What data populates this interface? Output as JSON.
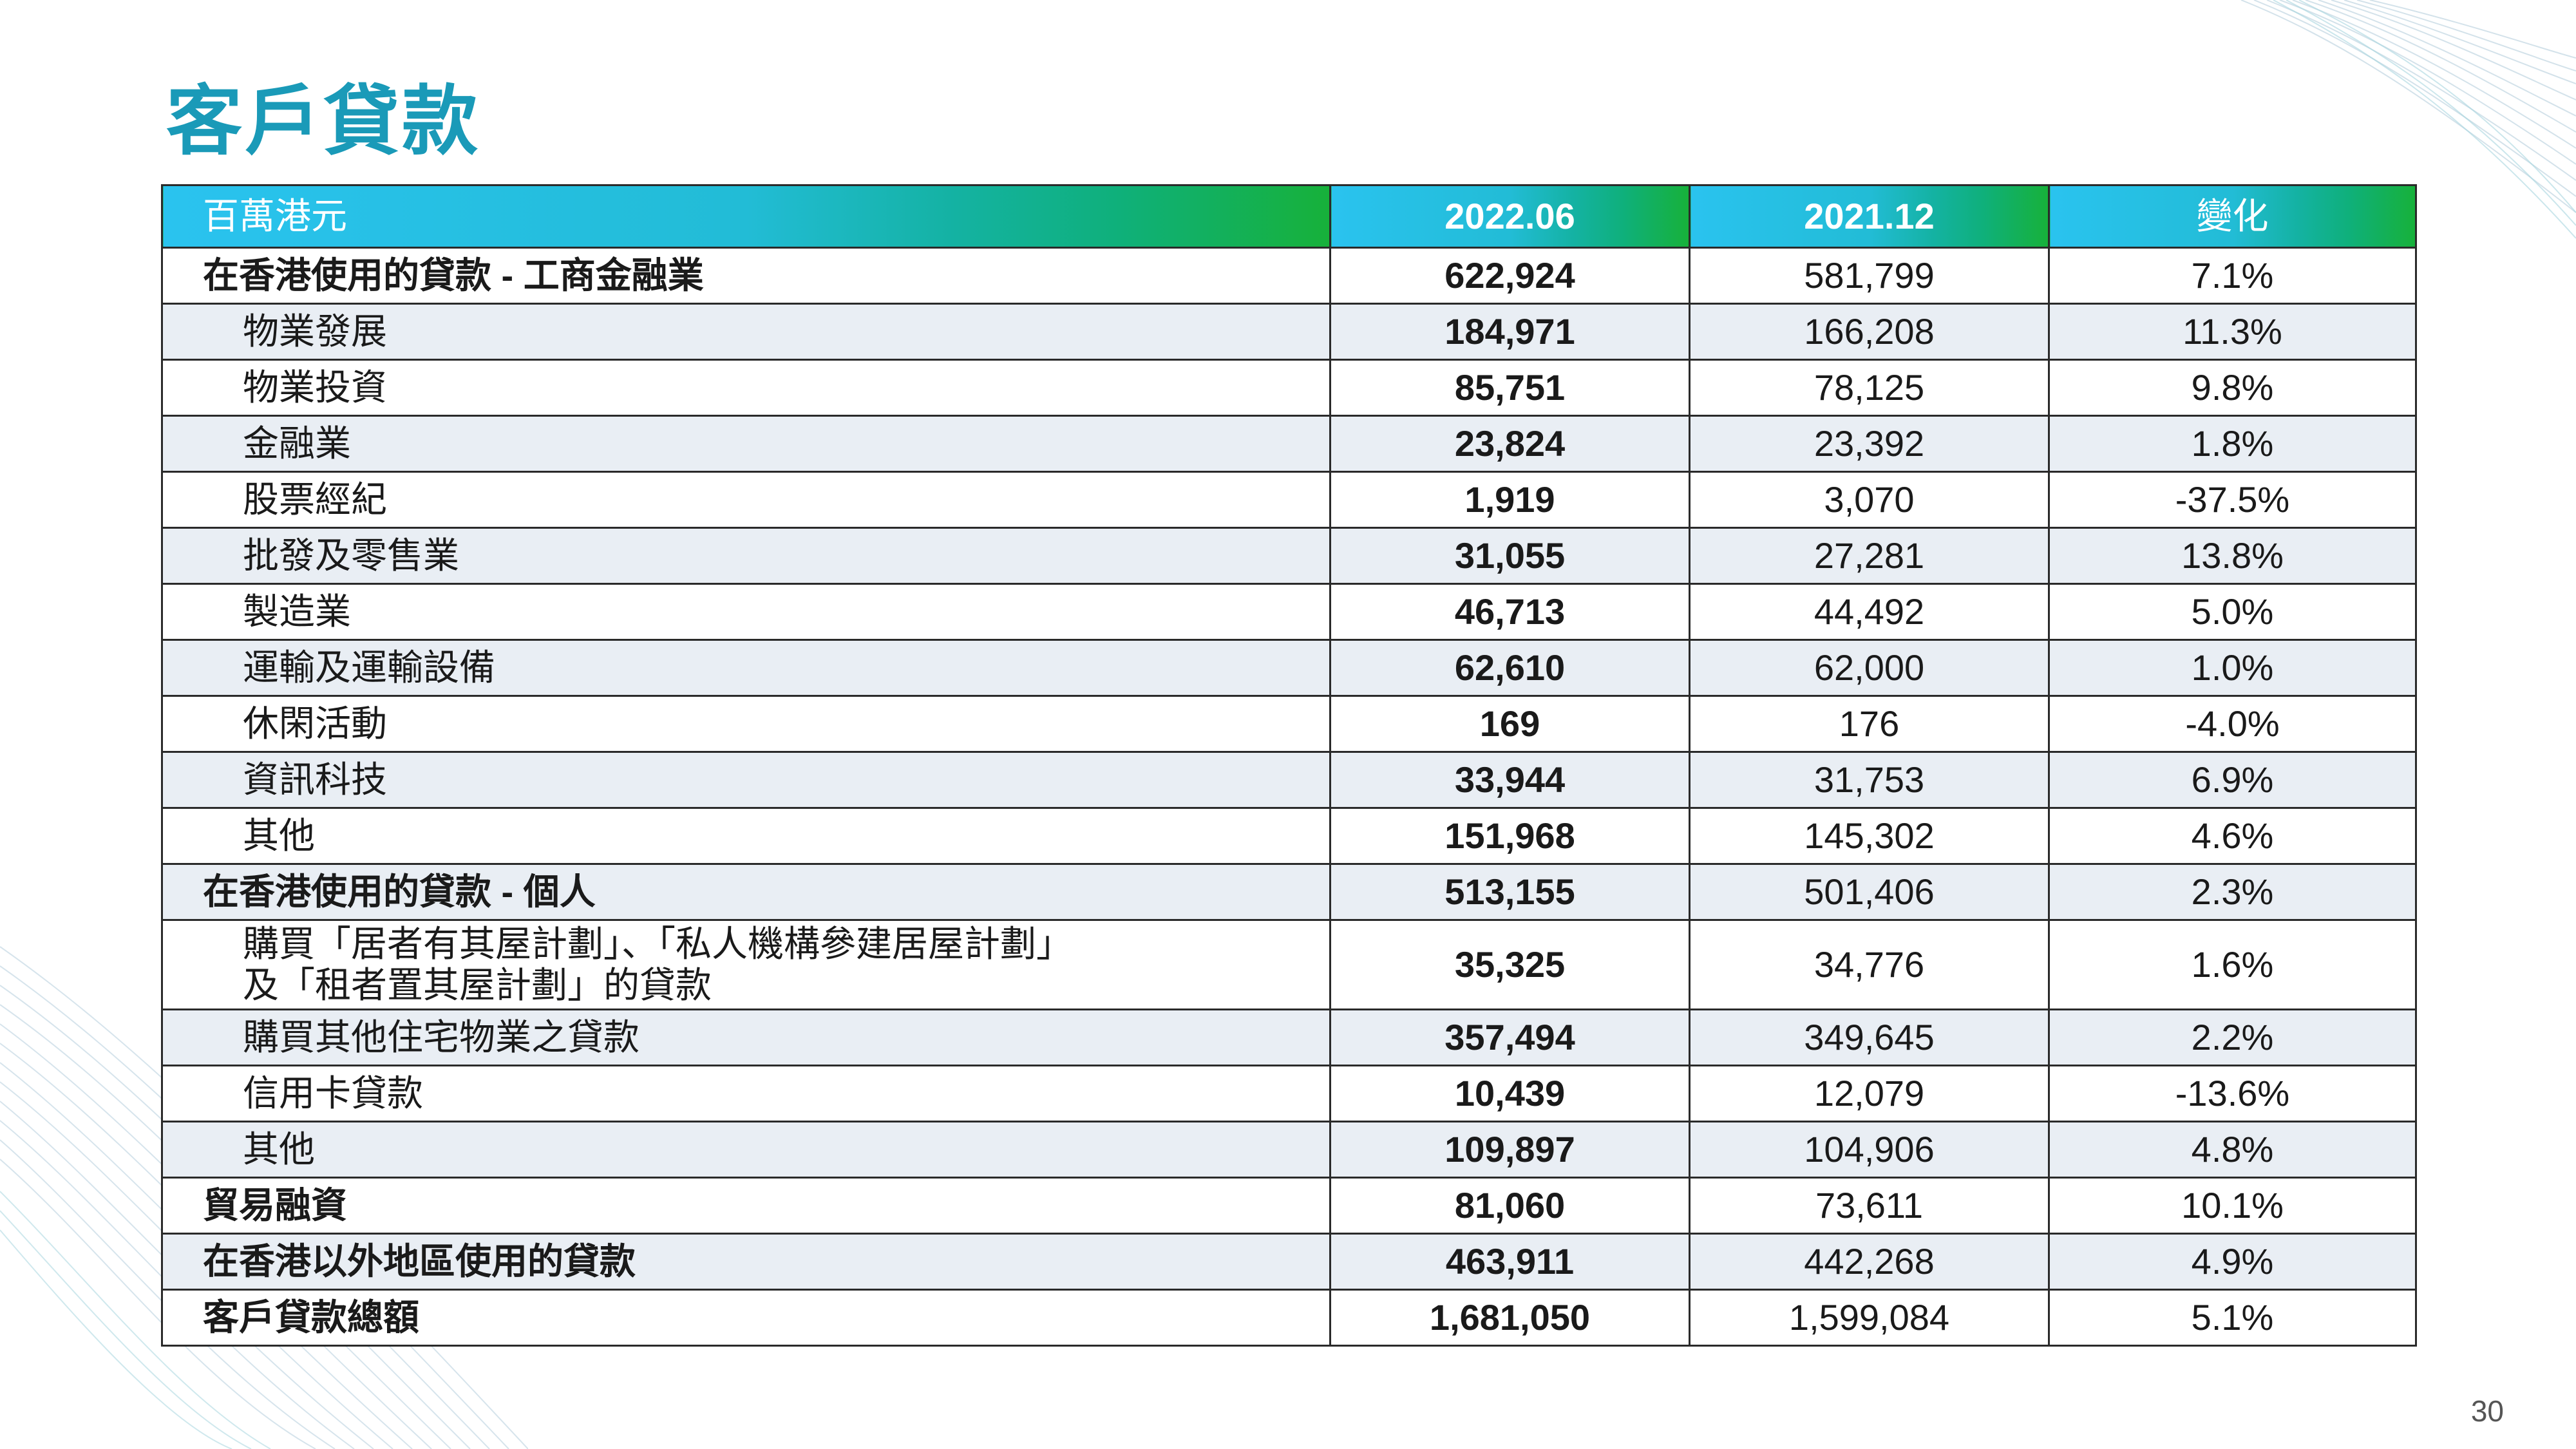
{
  "slide": {
    "title": "客戶貸款",
    "page_number": "30"
  },
  "table": {
    "headers": [
      "百萬港元",
      "2022.06",
      "2021.12",
      "變化"
    ],
    "rows": [
      {
        "label": "在香港使用的貸款 - 工商金融業",
        "level": 0,
        "v2022": "622,924",
        "v2021": "581,799",
        "change": "7.1%"
      },
      {
        "label": "物業發展",
        "level": 1,
        "v2022": "184,971",
        "v2021": "166,208",
        "change": "11.3%"
      },
      {
        "label": "物業投資",
        "level": 1,
        "v2022": "85,751",
        "v2021": "78,125",
        "change": "9.8%"
      },
      {
        "label": "金融業",
        "level": 1,
        "v2022": "23,824",
        "v2021": "23,392",
        "change": "1.8%"
      },
      {
        "label": "股票經紀",
        "level": 1,
        "v2022": "1,919",
        "v2021": "3,070",
        "change": "-37.5%"
      },
      {
        "label": "批發及零售業",
        "level": 1,
        "v2022": "31,055",
        "v2021": "27,281",
        "change": "13.8%"
      },
      {
        "label": "製造業",
        "level": 1,
        "v2022": "46,713",
        "v2021": "44,492",
        "change": "5.0%"
      },
      {
        "label": "運輸及運輸設備",
        "level": 1,
        "v2022": "62,610",
        "v2021": "62,000",
        "change": "1.0%"
      },
      {
        "label": "休閑活動",
        "level": 1,
        "v2022": "169",
        "v2021": "176",
        "change": "-4.0%"
      },
      {
        "label": "資訊科技",
        "level": 1,
        "v2022": "33,944",
        "v2021": "31,753",
        "change": "6.9%"
      },
      {
        "label": "其他",
        "level": 1,
        "v2022": "151,968",
        "v2021": "145,302",
        "change": "4.6%"
      },
      {
        "label": "在香港使用的貸款 - 個人",
        "level": 0,
        "v2022": "513,155",
        "v2021": "501,406",
        "change": "2.3%"
      },
      {
        "label": "購買「居者有其屋計劃」、「私人機構參建居屋計劃」",
        "label2": "及「租者置其屋計劃」的貸款",
        "level": 1,
        "v2022": "35,325",
        "v2021": "34,776",
        "change": "1.6%"
      },
      {
        "label": "購買其他住宅物業之貸款",
        "level": 1,
        "v2022": "357,494",
        "v2021": "349,645",
        "change": "2.2%"
      },
      {
        "label": "信用卡貸款",
        "level": 1,
        "v2022": "10,439",
        "v2021": "12,079",
        "change": "-13.6%"
      },
      {
        "label": "其他",
        "level": 1,
        "v2022": "109,897",
        "v2021": "104,906",
        "change": "4.8%"
      },
      {
        "label": "貿易融資",
        "level": 0,
        "v2022": "81,060",
        "v2021": "73,611",
        "change": "10.1%"
      },
      {
        "label": "在香港以外地區使用的貸款",
        "level": 0,
        "v2022": "463,911",
        "v2021": "442,268",
        "change": "4.9%"
      },
      {
        "label": "客戶貸款總額",
        "level": 0,
        "v2022": "1,681,050",
        "v2021": "1,599,084",
        "change": "5.1%"
      }
    ]
  },
  "colors": {
    "title": "#1a9ab8",
    "header_start": "#2ac3ef",
    "header_end": "#17b13a",
    "row_alt": "#e9eef4"
  }
}
